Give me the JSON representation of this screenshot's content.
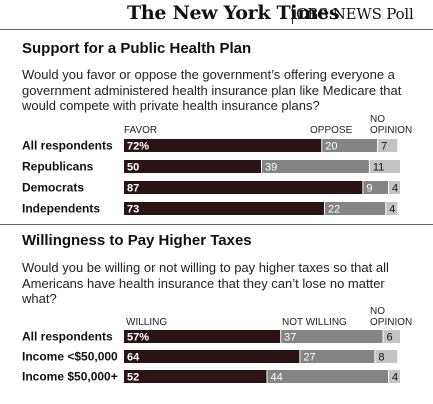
{
  "masthead": {
    "nyt": "The New York Times",
    "poll": "CBS NEWS Poll"
  },
  "colors": {
    "favor": "#2b1313",
    "oppose": "#848484",
    "no_opinion": "#c4c4c4"
  },
  "sections": [
    {
      "title": "Support for a Public Health Plan",
      "question": "Would you favor or oppose the government’s offering everyone a government administered health insurance plan like Medicare that would compete with private health insurance plans?"
    },
    {
      "title": "Willingness to Pay Higher Taxes",
      "question": "Would you be willing or not willing to pay higher taxes so that all Americans have health insurance that they can’t lose no matter what?"
    }
  ],
  "chart_data": [
    {
      "type": "bar",
      "categories": [
        "All respondents",
        "Republicans",
        "Democrats",
        "Independents"
      ],
      "series": [
        {
          "name": "FAVOR",
          "values": [
            72,
            50,
            87,
            73
          ],
          "labels": [
            "72%",
            "50",
            "87",
            "73"
          ]
        },
        {
          "name": "OPPOSE",
          "values": [
            20,
            39,
            9,
            22
          ],
          "labels": [
            "20",
            "39",
            "9",
            "22"
          ]
        },
        {
          "name": "NO OPINION",
          "values": [
            7,
            11,
            4,
            4
          ],
          "labels": [
            "7",
            "11",
            "4",
            "4"
          ]
        }
      ]
    },
    {
      "type": "bar",
      "categories": [
        "All respondents",
        "Income <$50,000",
        "Income $50,000+"
      ],
      "series": [
        {
          "name": "WILLING",
          "values": [
            57,
            64,
            52
          ],
          "labels": [
            "57%",
            "64",
            "52"
          ]
        },
        {
          "name": "NOT WILLING",
          "values": [
            37,
            27,
            44
          ],
          "labels": [
            "37",
            "27",
            "44"
          ]
        },
        {
          "name": "NO OPINION",
          "values": [
            6,
            8,
            4
          ],
          "labels": [
            "6",
            "8",
            "4"
          ]
        }
      ]
    }
  ]
}
